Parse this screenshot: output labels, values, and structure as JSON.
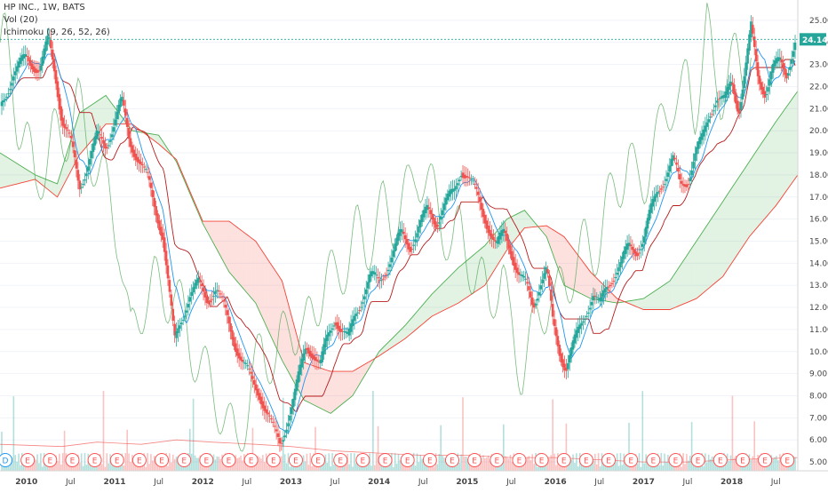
{
  "legend": {
    "symbol_line": "HP INC., 1W, BATS",
    "volume_line": "Vol (20)",
    "ichimoku_line": "Ichimoku (9, 26, 52, 26)"
  },
  "last_price_label": "24.14",
  "colors": {
    "up": "#26a69a",
    "down": "#ef5350",
    "cloud_bull": "#4caf50",
    "cloud_bear": "#f44336",
    "conversion": "#2196f3",
    "base": "#b71c1c",
    "lagging": "#43a047",
    "price_line": "#26a69a",
    "axis_text": "#444444",
    "earnings_badge": "#ff5252"
  },
  "chart_data": {
    "type": "candlestick",
    "title": "HP INC., 1W, BATS",
    "price_axis": {
      "ticks": [
        "25.00",
        "24.00",
        "23.00",
        "22.00",
        "21.00",
        "20.00",
        "19.00",
        "18.00",
        "17.00",
        "16.00",
        "15.00",
        "14.00",
        "13.00",
        "12.00",
        "11.00",
        "10.00",
        "9.00",
        "8.00",
        "7.00",
        "6.00",
        "5.00"
      ],
      "range": [
        4.6,
        25.6
      ]
    },
    "time_axis": {
      "ticks": [
        "2010",
        "Jul",
        "2011",
        "Jul",
        "2012",
        "Jul",
        "2013",
        "Jul",
        "2014",
        "Jul",
        "2015",
        "Jul",
        "2016",
        "Jul",
        "2017",
        "Jul",
        "2018",
        "Jul"
      ],
      "range": [
        2009.7,
        2018.75
      ]
    },
    "price_path": [
      [
        2009.7,
        21.0
      ],
      [
        2009.85,
        22.6
      ],
      [
        2010.0,
        23.3
      ],
      [
        2010.15,
        22.8
      ],
      [
        2010.25,
        24.1
      ],
      [
        2010.33,
        22.5
      ],
      [
        2010.4,
        20.6
      ],
      [
        2010.5,
        19.5
      ],
      [
        2010.6,
        17.4
      ],
      [
        2010.7,
        18.6
      ],
      [
        2010.8,
        19.7
      ],
      [
        2010.9,
        19.3
      ],
      [
        2011.0,
        20.5
      ],
      [
        2011.08,
        21.3
      ],
      [
        2011.17,
        19.5
      ],
      [
        2011.27,
        18.8
      ],
      [
        2011.37,
        17.8
      ],
      [
        2011.45,
        16.6
      ],
      [
        2011.55,
        15.3
      ],
      [
        2011.62,
        12.6
      ],
      [
        2011.68,
        10.4
      ],
      [
        2011.75,
        11.4
      ],
      [
        2011.85,
        12.6
      ],
      [
        2011.95,
        13.0
      ],
      [
        2012.05,
        12.4
      ],
      [
        2012.15,
        12.9
      ],
      [
        2012.25,
        11.8
      ],
      [
        2012.35,
        10.6
      ],
      [
        2012.45,
        9.5
      ],
      [
        2012.55,
        8.7
      ],
      [
        2012.65,
        8.1
      ],
      [
        2012.72,
        7.3
      ],
      [
        2012.8,
        6.4
      ],
      [
        2012.88,
        5.8
      ],
      [
        2012.95,
        6.8
      ],
      [
        2013.03,
        7.8
      ],
      [
        2013.1,
        9.0
      ],
      [
        2013.17,
        10.3
      ],
      [
        2013.25,
        10.0
      ],
      [
        2013.33,
        9.3
      ],
      [
        2013.4,
        10.4
      ],
      [
        2013.5,
        11.6
      ],
      [
        2013.57,
        11.0
      ],
      [
        2013.65,
        10.5
      ],
      [
        2013.73,
        11.7
      ],
      [
        2013.82,
        12.6
      ],
      [
        2013.9,
        13.4
      ],
      [
        2014.0,
        13.1
      ],
      [
        2014.08,
        13.8
      ],
      [
        2014.17,
        14.6
      ],
      [
        2014.25,
        15.3
      ],
      [
        2014.35,
        14.8
      ],
      [
        2014.45,
        15.6
      ],
      [
        2014.55,
        16.4
      ],
      [
        2014.65,
        15.9
      ],
      [
        2014.75,
        16.7
      ],
      [
        2014.85,
        17.2
      ],
      [
        2014.93,
        18.3
      ],
      [
        2015.0,
        18.0
      ],
      [
        2015.08,
        17.3
      ],
      [
        2015.17,
        16.4
      ],
      [
        2015.25,
        15.6
      ],
      [
        2015.33,
        14.7
      ],
      [
        2015.42,
        15.4
      ],
      [
        2015.5,
        14.6
      ],
      [
        2015.58,
        13.5
      ],
      [
        2015.67,
        12.9
      ],
      [
        2015.75,
        12.1
      ],
      [
        2015.83,
        13.2
      ],
      [
        2015.9,
        13.7
      ],
      [
        2015.97,
        11.3
      ],
      [
        2016.05,
        10.0
      ],
      [
        2016.12,
        9.3
      ],
      [
        2016.2,
        10.2
      ],
      [
        2016.28,
        11.1
      ],
      [
        2016.35,
        11.9
      ],
      [
        2016.43,
        12.6
      ],
      [
        2016.5,
        12.0
      ],
      [
        2016.58,
        12.9
      ],
      [
        2016.67,
        13.6
      ],
      [
        2016.75,
        14.0
      ],
      [
        2016.83,
        14.7
      ],
      [
        2016.92,
        14.6
      ],
      [
        2017.0,
        15.1
      ],
      [
        2017.08,
        16.3
      ],
      [
        2017.17,
        17.4
      ],
      [
        2017.25,
        18.0
      ],
      [
        2017.33,
        18.7
      ],
      [
        2017.42,
        17.5
      ],
      [
        2017.5,
        17.8
      ],
      [
        2017.58,
        18.9
      ],
      [
        2017.67,
        19.6
      ],
      [
        2017.75,
        20.8
      ],
      [
        2017.83,
        21.6
      ],
      [
        2017.92,
        21.3
      ],
      [
        2018.0,
        22.2
      ],
      [
        2018.08,
        21.0
      ],
      [
        2018.17,
        23.2
      ],
      [
        2018.22,
        24.6
      ],
      [
        2018.3,
        22.4
      ],
      [
        2018.38,
        21.8
      ],
      [
        2018.47,
        22.8
      ],
      [
        2018.55,
        23.1
      ],
      [
        2018.62,
        22.6
      ],
      [
        2018.68,
        23.5
      ],
      [
        2018.73,
        24.14
      ]
    ],
    "cloud_span_a": [
      [
        2009.7,
        19.0
      ],
      [
        2010.1,
        18.0
      ],
      [
        2010.35,
        17.6
      ],
      [
        2010.6,
        20.8
      ],
      [
        2010.9,
        21.6
      ],
      [
        2011.2,
        20.0
      ],
      [
        2011.5,
        19.8
      ],
      [
        2011.7,
        18.6
      ],
      [
        2012.0,
        15.8
      ],
      [
        2012.3,
        13.6
      ],
      [
        2012.6,
        12.2
      ],
      [
        2012.9,
        9.6
      ],
      [
        2013.15,
        7.8
      ],
      [
        2013.45,
        7.2
      ],
      [
        2013.7,
        8.0
      ],
      [
        2014.0,
        10.0
      ],
      [
        2014.3,
        11.2
      ],
      [
        2014.6,
        12.6
      ],
      [
        2014.9,
        13.8
      ],
      [
        2015.2,
        14.8
      ],
      [
        2015.45,
        16.0
      ],
      [
        2015.65,
        16.4
      ],
      [
        2015.9,
        15.2
      ],
      [
        2016.1,
        13.0
      ],
      [
        2016.4,
        12.4
      ],
      [
        2016.7,
        12.2
      ],
      [
        2017.0,
        12.4
      ],
      [
        2017.3,
        13.2
      ],
      [
        2017.6,
        15.0
      ],
      [
        2017.9,
        16.8
      ],
      [
        2018.2,
        18.6
      ],
      [
        2018.5,
        20.4
      ],
      [
        2018.75,
        21.8
      ]
    ],
    "cloud_span_b": [
      [
        2009.7,
        17.4
      ],
      [
        2010.1,
        17.8
      ],
      [
        2010.35,
        17.0
      ],
      [
        2010.6,
        18.9
      ],
      [
        2010.9,
        20.3
      ],
      [
        2011.2,
        20.3
      ],
      [
        2011.5,
        19.4
      ],
      [
        2011.7,
        18.7
      ],
      [
        2012.0,
        15.9
      ],
      [
        2012.3,
        15.9
      ],
      [
        2012.6,
        15.0
      ],
      [
        2012.9,
        13.2
      ],
      [
        2013.15,
        9.5
      ],
      [
        2013.45,
        9.1
      ],
      [
        2013.7,
        9.1
      ],
      [
        2014.0,
        9.8
      ],
      [
        2014.3,
        10.6
      ],
      [
        2014.6,
        11.6
      ],
      [
        2014.9,
        12.2
      ],
      [
        2015.2,
        13.0
      ],
      [
        2015.45,
        14.6
      ],
      [
        2015.65,
        15.6
      ],
      [
        2015.9,
        15.7
      ],
      [
        2016.1,
        15.2
      ],
      [
        2016.4,
        13.6
      ],
      [
        2016.7,
        12.4
      ],
      [
        2017.0,
        11.9
      ],
      [
        2017.3,
        11.9
      ],
      [
        2017.6,
        12.4
      ],
      [
        2017.9,
        13.4
      ],
      [
        2018.2,
        15.2
      ],
      [
        2018.5,
        16.6
      ],
      [
        2018.75,
        18.0
      ]
    ],
    "volume_path": [
      [
        2009.7,
        5.8
      ],
      [
        2010.4,
        5.7
      ],
      [
        2010.8,
        5.9
      ],
      [
        2011.3,
        5.8
      ],
      [
        2011.7,
        6.0
      ],
      [
        2012.1,
        5.9
      ],
      [
        2012.6,
        5.8
      ],
      [
        2013.0,
        5.7
      ],
      [
        2013.5,
        5.5
      ],
      [
        2014.0,
        5.4
      ],
      [
        2014.5,
        5.3
      ],
      [
        2015.0,
        5.3
      ],
      [
        2015.5,
        5.2
      ],
      [
        2016.0,
        5.2
      ],
      [
        2016.5,
        5.1
      ],
      [
        2017.0,
        5.0
      ],
      [
        2017.5,
        5.0
      ],
      [
        2018.0,
        5.1
      ],
      [
        2018.75,
        5.2
      ]
    ],
    "earnings_markers": [
      "D",
      "E",
      "E",
      "E",
      "E",
      "E",
      "E",
      "E",
      "E",
      "E",
      "E",
      "E",
      "E",
      "E",
      "E",
      "E",
      "E",
      "E",
      "E",
      "E",
      "E",
      "E",
      "E",
      "E",
      "E",
      "E",
      "E",
      "E",
      "E",
      "E",
      "E",
      "E",
      "E",
      "E",
      "E",
      "E"
    ]
  }
}
